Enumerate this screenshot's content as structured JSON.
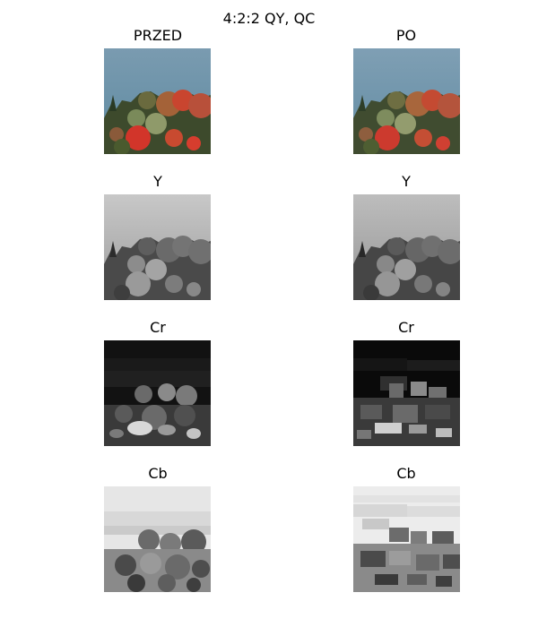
{
  "figure": {
    "title": "4:2:2 QY, QC"
  },
  "panels": [
    {
      "title": "PRZED"
    },
    {
      "title": "PO"
    },
    {
      "title": "Y"
    },
    {
      "title": "Y"
    },
    {
      "title": "Cr"
    },
    {
      "title": "Cr"
    },
    {
      "title": "Cb"
    },
    {
      "title": "Cb"
    }
  ]
}
